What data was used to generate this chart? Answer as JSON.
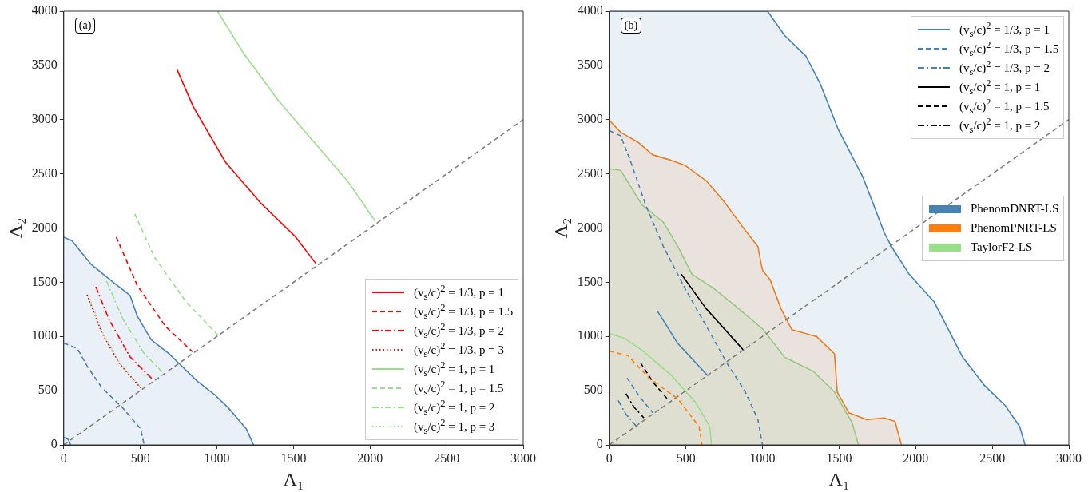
{
  "chart_data": [
    {
      "type": "line",
      "xlabel": "Λ₁",
      "ylabel": "Λ₂",
      "annotations": [
        "(a)"
      ],
      "xlim": [
        0,
        3000
      ],
      "ylim": [
        0,
        4000
      ],
      "xticks": [
        0,
        500,
        1000,
        1500,
        2000,
        2500,
        3000
      ],
      "yticks": [
        0,
        500,
        1000,
        1500,
        2000,
        2500,
        3000,
        3500,
        4000
      ],
      "grid": false,
      "legend": "bottom right",
      "series": [
        {
          "type": "area",
          "color": "#4a80b8",
          "x": [
            0,
            53,
            180,
            318,
            433,
            479,
            571,
            686,
            755,
            870,
            985,
            1077,
            1192,
            1239
          ],
          "values": [
            1916,
            1884,
            1663,
            1506,
            1379,
            1190,
            969,
            843,
            748,
            590,
            464,
            338,
            148,
            0
          ]
        },
        {
          "color": "#4a80b8",
          "line_style": "dashed",
          "x": [
            0,
            88,
            157,
            249,
            387,
            502,
            525
          ],
          "values": [
            938,
            890,
            717,
            527,
            338,
            148,
            0
          ]
        },
        {
          "color": "#4a80b8",
          "x": [
            0,
            30,
            45
          ],
          "values": [
            70,
            50,
            0
          ]
        },
        {
          "color": "#808080",
          "line_style": "dashed",
          "x": [
            0,
            3000
          ],
          "values": [
            0,
            3000
          ]
        },
        {
          "name": "(v$_{s}$/c)$^{2}$ = 1/3,   p = 1",
          "color": "#ff0000",
          "x": [
            739,
            847,
            1055,
            1285,
            1515,
            1646
          ],
          "values": [
            3463,
            3115,
            2610,
            2232,
            1916,
            1673
          ]
        },
        {
          "name": "(v$_{s}$/c)$^{2}$ = 1/3,   p = 1.5",
          "color": "#ff0000",
          "line_style": "dashed",
          "x": [
            343,
            479,
            663,
            840
          ],
          "values": [
            1916,
            1474,
            1095,
            859
          ]
        },
        {
          "name": "(v$_{s}$/c)$^{2}$ = 1/3,   p = 2",
          "color": "#ff0000",
          "line_style": "dashdot",
          "x": [
            210,
            295,
            433,
            583
          ],
          "values": [
            1458,
            1158,
            811,
            600
          ]
        },
        {
          "name": "(v$_{s}$/c)$^{2}$ = 1/3,   p = 3",
          "color": "#ff0000",
          "line_style": "dotted",
          "x": [
            152,
            249,
            364,
            502
          ],
          "values": [
            1386,
            1032,
            748,
            527
          ]
        },
        {
          "name": "(v$_{s}$/c)$^{2}$ = 1,   p = 1",
          "color": "#98df8a",
          "x": [
            1004,
            1170,
            1400,
            1630,
            1860,
            2033
          ],
          "values": [
            4000,
            3621,
            3179,
            2800,
            2421,
            2064
          ]
        },
        {
          "name": "(v$_{s}$/c)$^{2}$ = 1,   p = 1.5",
          "color": "#98df8a",
          "line_style": "dashed",
          "x": [
            463,
            594,
            801,
            1004
          ],
          "values": [
            2131,
            1727,
            1316,
            1016
          ]
        },
        {
          "name": "(v$_{s}$/c)$^{2}$ = 1,   p = 2",
          "color": "#98df8a",
          "line_style": "dashdot",
          "x": [
            279,
            387,
            525,
            640
          ],
          "values": [
            1512,
            1158,
            843,
            675
          ]
        },
        {
          "name": "(v$_{s}$/c)$^{2}$ = 1,   p = 3",
          "color": "#98df8a",
          "line_style": "dotted",
          "x": [
            161,
            258,
            372,
            509
          ],
          "values": [
            1379,
            1025,
            742,
            521
          ]
        }
      ]
    },
    {
      "type": "line",
      "xlabel": "Λ₁",
      "ylabel": "Λ₂",
      "annotations": [
        "(b)"
      ],
      "xlim": [
        0,
        3000
      ],
      "ylim": [
        0,
        4000
      ],
      "xticks": [
        0,
        500,
        1000,
        1500,
        2000,
        2500,
        3000
      ],
      "yticks": [
        0,
        500,
        1000,
        1500,
        2000,
        2500,
        3000,
        3500,
        4000
      ],
      "grid": false,
      "legend": "top right",
      "series": [
        {
          "type": "area",
          "name": "PhenomDNRT-LS",
          "color": "#4682b4",
          "x": [
            0,
            1033,
            1144,
            1284,
            1377,
            1493,
            1656,
            1726,
            1795,
            1842,
            1958,
            2121,
            2214,
            2307,
            2447,
            2586,
            2679,
            2714
          ],
          "values": [
            4000,
            4000,
            3777,
            3585,
            3330,
            2915,
            2468,
            2212,
            1957,
            1829,
            1574,
            1318,
            1063,
            808,
            552,
            361,
            169,
            0
          ]
        },
        {
          "type": "area",
          "name": "PhenomPNRT-LS",
          "color": "#ff7f0e",
          "x": [
            0,
            74,
            191,
            284,
            400,
            493,
            633,
            749,
            865,
            970,
            991,
            1002,
            1049,
            1121,
            1191,
            1353,
            1470,
            1488,
            1563,
            1679,
            1795,
            1865,
            1907
          ],
          "values": [
            2994,
            2883,
            2788,
            2675,
            2627,
            2579,
            2436,
            2244,
            2021,
            1829,
            1669,
            1606,
            1526,
            1255,
            1063,
            999,
            840,
            488,
            297,
            233,
            249,
            217,
            0
          ]
        },
        {
          "type": "area",
          "name": "TaylorF2-LS",
          "color": "#98df8a",
          "x": [
            0,
            74,
            214,
            353,
            447,
            540,
            679,
            819,
            1005,
            1144,
            1330,
            1470,
            1586,
            1626
          ],
          "values": [
            2547,
            2532,
            2212,
            2053,
            1829,
            1574,
            1446,
            1287,
            1063,
            808,
            680,
            488,
            201,
            0
          ]
        },
        {
          "color": "#4682b4",
          "line_style": "dashed",
          "x": [
            0,
            74,
            144,
            237,
            353,
            493,
            633,
            772,
            888,
            970,
            1000
          ],
          "values": [
            2899,
            2851,
            2595,
            2212,
            1829,
            1446,
            1095,
            744,
            488,
            233,
            0
          ]
        },
        {
          "color": "#98df8a",
          "x": [
            0,
            98,
            214,
            400,
            563,
            656,
            667
          ],
          "values": [
            1025,
            983,
            872,
            648,
            393,
            169,
            0
          ]
        },
        {
          "color": "#ff7f0e",
          "line_style": "dashed",
          "x": [
            0,
            121,
            260,
            447,
            586,
            605
          ],
          "values": [
            865,
            824,
            616,
            425,
            169,
            0
          ]
        },
        {
          "color": "#808080",
          "line_style": "dashed",
          "x": [
            0,
            3000
          ],
          "values": [
            0,
            3000
          ]
        },
        {
          "name": "(v$_{s}$/c)$^{2}$ = 1/3,   p = 1",
          "color": "#4682b4",
          "x": [
            312,
            447,
            640
          ],
          "values": [
            1239,
            935,
            642
          ]
        },
        {
          "name": "(v$_{s}$/c)$^{2}$ = 1/3,   p = 1.5",
          "color": "#4682b4",
          "line_style": "dashed",
          "x": [
            116,
            200,
            284
          ],
          "values": [
            616,
            440,
            297
          ]
        },
        {
          "name": "(v$_{s}$/c)$^{2}$ = 1/3,   p = 2",
          "color": "#4682b4",
          "line_style": "dashdot",
          "x": [
            58,
            110,
            179
          ],
          "values": [
            409,
            280,
            169
          ]
        },
        {
          "name": "(v$_{s}$/c)$^{2}$ = 1,   p = 1",
          "color": "#000000",
          "x": [
            470,
            633,
            877
          ],
          "values": [
            1574,
            1255,
            872
          ]
        },
        {
          "name": "(v$_{s}$/c)$^{2}$ = 1,   p = 1.5",
          "color": "#000000",
          "line_style": "dashed",
          "x": [
            202,
            290,
            388
          ],
          "values": [
            760,
            570,
            409
          ]
        },
        {
          "name": "(v$_{s}$/c)$^{2}$ = 1,   p = 2",
          "color": "#000000",
          "line_style": "dashdot",
          "x": [
            109,
            160,
            226
          ],
          "values": [
            472,
            350,
            249
          ]
        }
      ]
    }
  ]
}
